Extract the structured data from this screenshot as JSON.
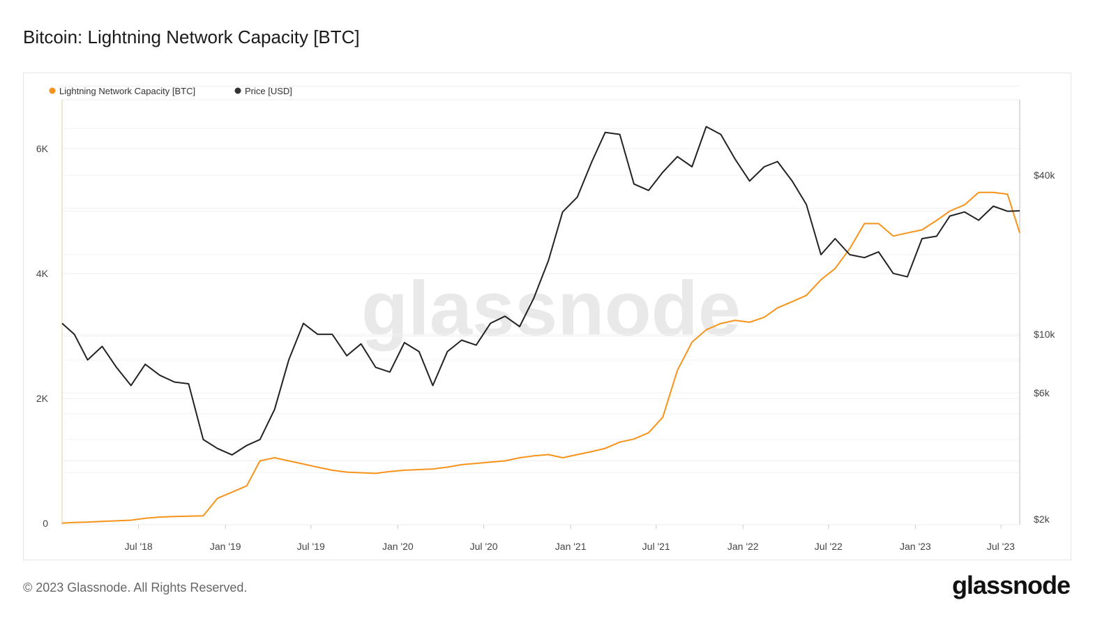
{
  "title": "Bitcoin: Lightning Network Capacity [BTC]",
  "footer": "© 2023 Glassnode. All Rights Reserved.",
  "logo": "glassnode",
  "watermark": "glassnode",
  "chart_data": {
    "type": "line",
    "title": "Bitcoin: Lightning Network Capacity [BTC]",
    "x_range": [
      "2018-01-20",
      "2023-08-10"
    ],
    "x_ticks": [
      "Jul '18",
      "Jan '19",
      "Jul '19",
      "Jan '20",
      "Jul '20",
      "Jan '21",
      "Jul '21",
      "Jan '22",
      "Jul '22",
      "Jan '23",
      "Jul '23"
    ],
    "y_left": {
      "ticks": [
        "0",
        "2K",
        "4K",
        "6K"
      ],
      "tick_values": [
        0,
        2000,
        4000,
        6000
      ],
      "range": [
        0,
        7000
      ],
      "scale": "linear"
    },
    "y_right": {
      "ticks": [
        "$2k",
        "$6k",
        "$10k",
        "$40k"
      ],
      "tick_values": [
        2000,
        6000,
        10000,
        40000
      ],
      "range": [
        2000,
        80000
      ],
      "scale": "log"
    },
    "grid": true,
    "legend_placement": "top-left",
    "colors": {
      "capacity": "#f7931a",
      "price": "#222222"
    },
    "x": [
      "2018-01",
      "2018-02",
      "2018-03",
      "2018-04",
      "2018-05",
      "2018-06",
      "2018-07",
      "2018-08",
      "2018-09",
      "2018-10",
      "2018-11",
      "2018-12",
      "2019-01",
      "2019-02",
      "2019-03",
      "2019-04",
      "2019-05",
      "2019-06",
      "2019-07",
      "2019-08",
      "2019-09",
      "2019-10",
      "2019-11",
      "2019-12",
      "2020-01",
      "2020-02",
      "2020-03",
      "2020-04",
      "2020-05",
      "2020-06",
      "2020-07",
      "2020-08",
      "2020-09",
      "2020-10",
      "2020-11",
      "2020-12",
      "2021-01",
      "2021-02",
      "2021-03",
      "2021-04",
      "2021-05",
      "2021-06",
      "2021-07",
      "2021-08",
      "2021-09",
      "2021-10",
      "2021-11",
      "2021-12",
      "2022-01",
      "2022-02",
      "2022-03",
      "2022-04",
      "2022-05",
      "2022-06",
      "2022-07",
      "2022-08",
      "2022-09",
      "2022-10",
      "2022-11",
      "2022-12",
      "2023-01",
      "2023-02",
      "2023-03",
      "2023-04",
      "2023-05",
      "2023-06",
      "2023-07",
      "2023-08"
    ],
    "series": [
      {
        "name": "Lightning Network Capacity [BTC]",
        "axis": "left",
        "values": [
          5,
          15,
          20,
          30,
          40,
          50,
          80,
          100,
          110,
          115,
          120,
          400,
          500,
          600,
          1000,
          1050,
          1000,
          950,
          900,
          850,
          820,
          810,
          800,
          830,
          850,
          860,
          870,
          900,
          940,
          960,
          980,
          1000,
          1050,
          1080,
          1100,
          1050,
          1100,
          1150,
          1200,
          1300,
          1350,
          1450,
          1700,
          2450,
          2900,
          3100,
          3200,
          3250,
          3220,
          3300,
          3450,
          3550,
          3650,
          3900,
          4080,
          4400,
          4800,
          4800,
          4600,
          4650,
          4700,
          4850,
          5000,
          5100,
          5300,
          5300,
          5270,
          4650
        ]
      },
      {
        "name": "Price [USD]",
        "axis": "right",
        "values": [
          11000,
          10000,
          8000,
          9000,
          7500,
          6400,
          7700,
          7000,
          6600,
          6500,
          4000,
          3700,
          3500,
          3800,
          4000,
          5200,
          8000,
          11000,
          10000,
          10000,
          8300,
          9200,
          7500,
          7200,
          9300,
          8600,
          6400,
          8600,
          9500,
          9100,
          11000,
          11700,
          10700,
          13700,
          19000,
          29000,
          33000,
          45000,
          58000,
          57000,
          37000,
          35000,
          41000,
          47000,
          43000,
          61000,
          57000,
          46000,
          38000,
          43000,
          45000,
          38000,
          31000,
          20000,
          23000,
          20000,
          19500,
          20500,
          17000,
          16500,
          23000,
          23500,
          28000,
          29000,
          27000,
          30500,
          29200,
          29300
        ]
      }
    ]
  }
}
